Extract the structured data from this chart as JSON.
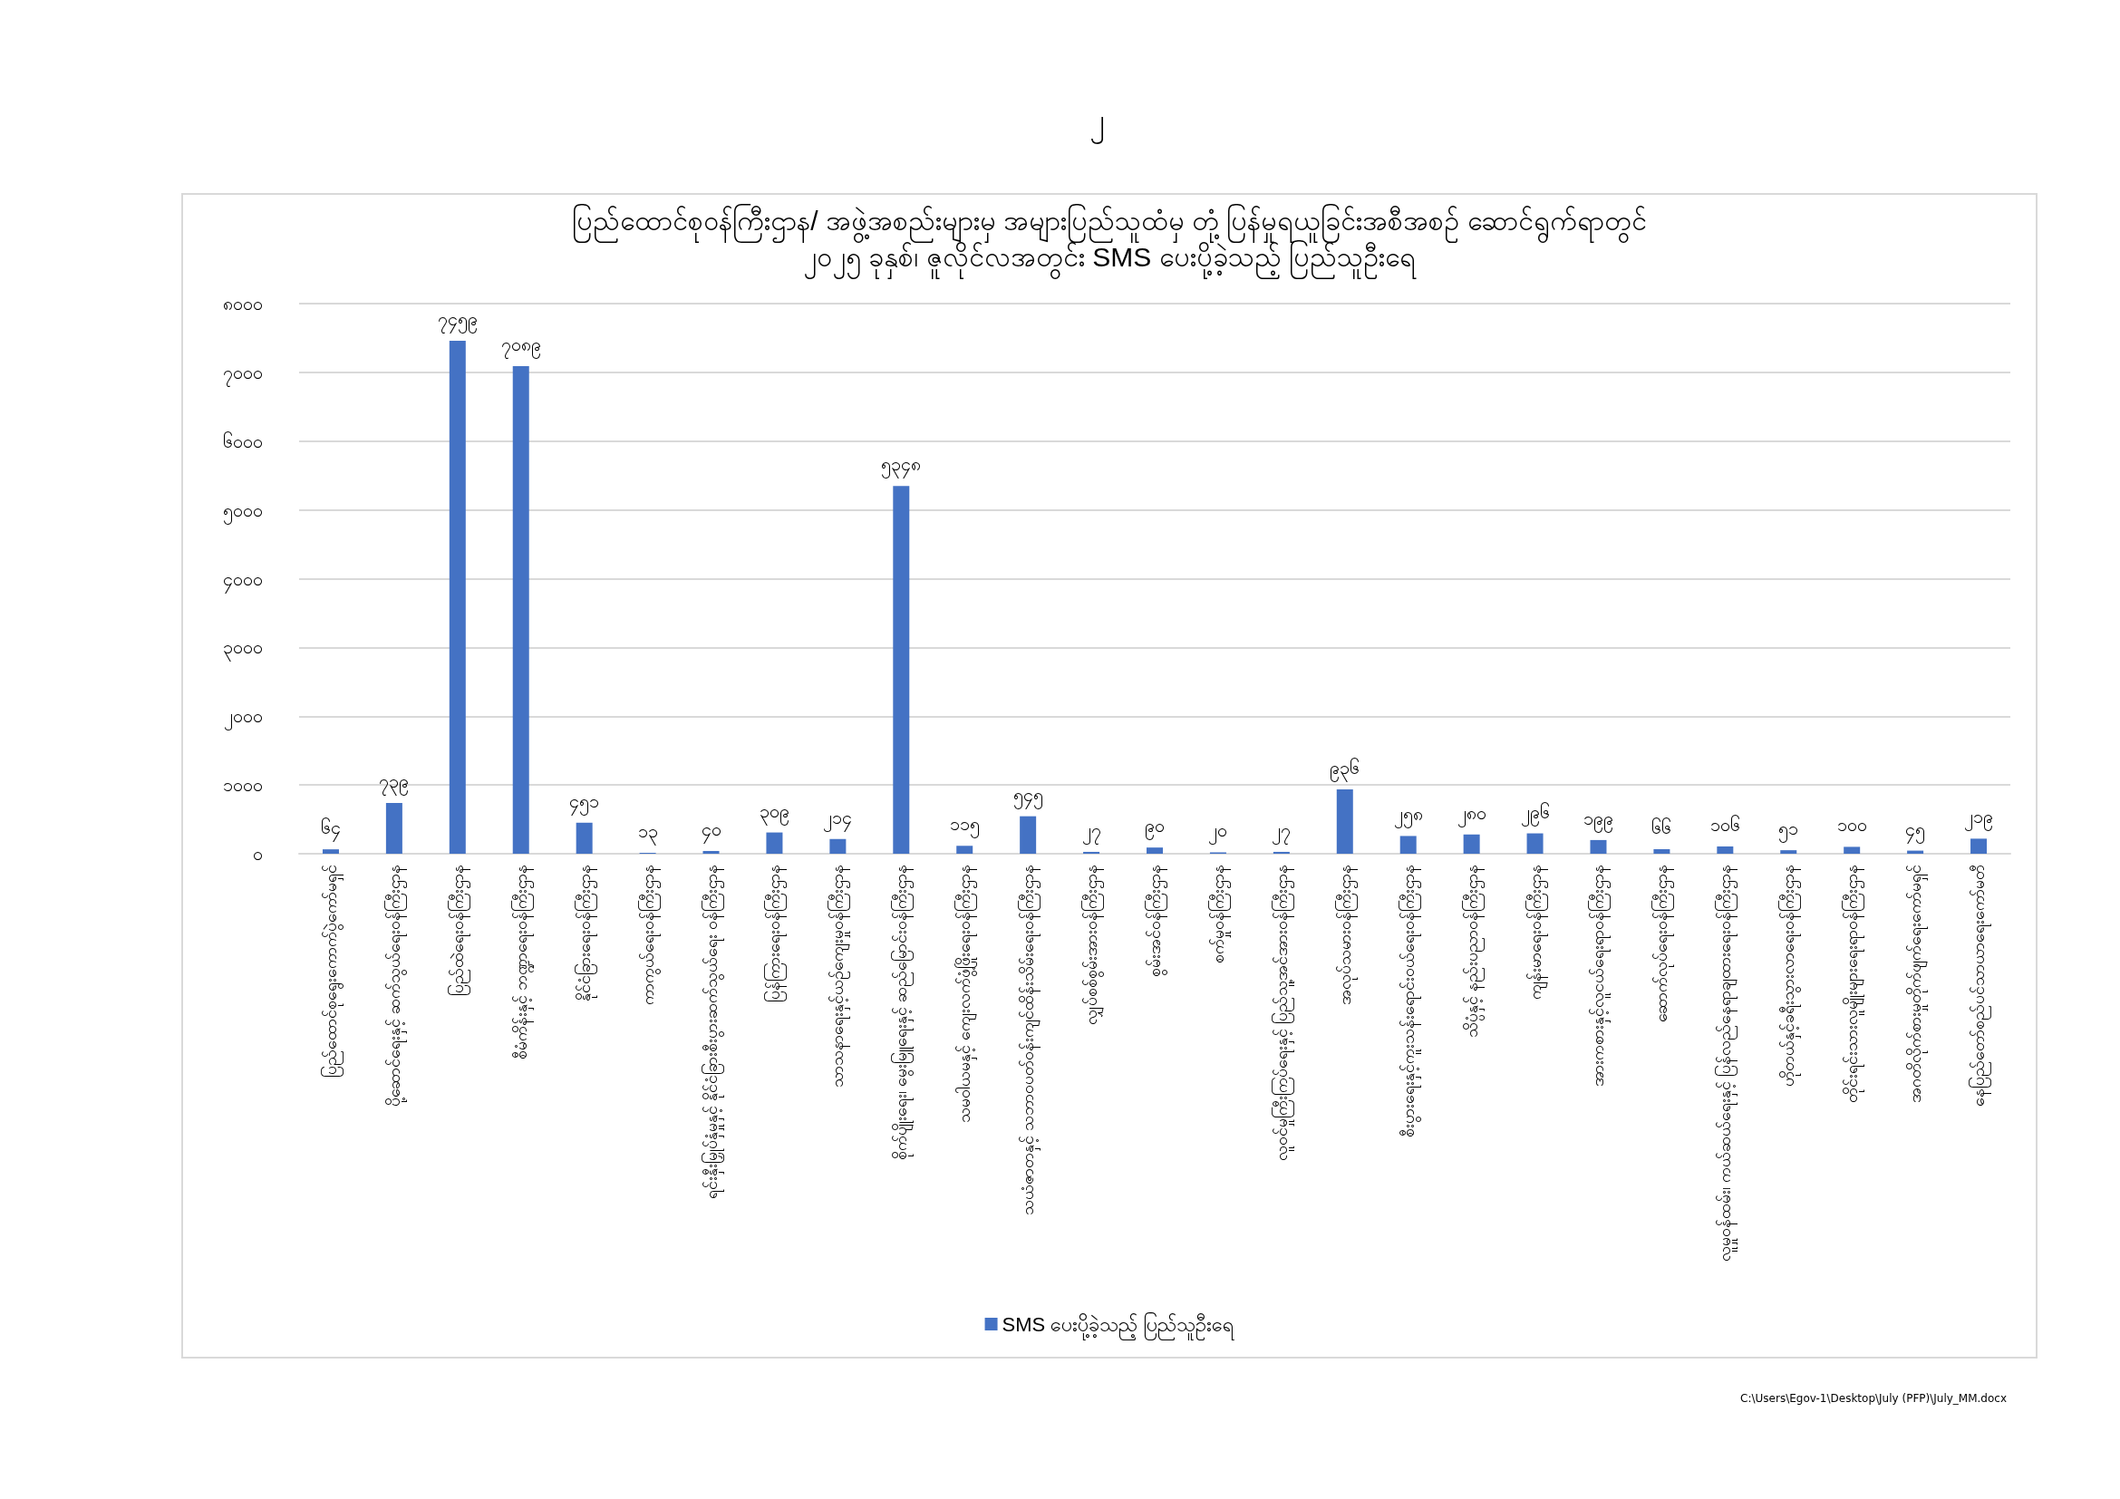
{
  "chart_data": {
    "type": "bar",
    "title": "ပြည်ထောင်စုဝန်ကြီးဌာန/ အဖွဲ့အစည်းများမှ အများပြည်သူထံမှ တုံ့ပြန်မှုရယူခြင်းအစီအစဉ် ဆောင်ရွက်ရာတွင်",
    "subtitle": "၂၀၂၅ ခုနှစ်၊ ဇူလိုင်လအတွင်း SMS ပေးပို့ခဲ့သည့် ပြည်သူဦးရေ",
    "annotations": [
      "၂",
      "C:\\Users\\Egov-1\\Desktop\\July (PFP)\\July_MM.docx"
    ],
    "categories": [
      "ပြည်ထောင်စုရွေးကောက်ပွဲကော်မရှင်",
      "ပို့ဆောင်ရေးနှင့် ဆက်သွယ်ရေးဝန်ကြီးဌာန",
      "ပြည်ထဲရေးဝန်ကြီးဌာန",
      "စီမံကိန်းနှင့် ဘဏ္ဍာရေးဝန်ကြီးဌာန",
      "နိုင်ငံခြားရေးဝန်ကြီးဌာန",
      "ကာကွယ်ရေးဝန်ကြီးဌာန",
      "ရင်းနှီးမြှုပ်နှံမှုနှင့် နိုင်ငံခြားစီးပွားဆက်သွယ်ရေး ဝန်ကြီးဌာန",
      "ပြန်ကြားရေးဝန်ကြီးဌာန",
      "သာသနာရေးနှင့်ယဉ်ကျေးမှုဝန်ကြီးဌာန",
      "စိုက်ပျိုးရေး၊ မွေးမြူရေးနှင့် ဆည်မြောင်းဝန်ကြီးဌာန",
      "သမဝါယမနှင့် ကျေးလက်ဖွံ့ဖြိုးရေးဝန်ကြီးဌာန",
      "သယံဇာတနှင့် သဘာဝပတ်ဝန်းကျင်ထိန်းသိမ်းရေးဝန်ကြီးဌာန",
      "လျှပ်စစ်စွမ်းအားဝန်ကြီးဌာန",
      "စွမ်းအင်ဝန်ကြီးဌာန",
      "စက်မှုဝန်ကြီးဌာန",
      "လူဝင်မှုကြီးကြပ်ရေးနှင့် ပြည်သူ့အင်အားဝန်ကြီးဌာန",
      "အလုပ်သမားဝန်ကြီးဌာန",
      "စီးပွားရေးနှင့်ကူးသန်းရောင်းဝယ်ရေးဝန်ကြီးဌာန",
      "သိပ္ပံနှင့် နည်းပညာဝန်ကြီးဌာန",
      "ကျန်းမာရေးဝန်ကြီးဌာန",
      "အားကစားနှင့်လူငယ်ရေးရာဝန်ကြီးဌာန",
      "ဆောက်လုပ်ရေးဝန်ကြီးဌာန",
      "လူမှုဝန်ထမ်း၊ ကယ်ဆယ်ရေးနှင့် ပြန်လည်နေရာချထားရေးဝန်ကြီးဌာန",
      "ဟိုတယ်နှင့်ခရီးသွားလာရေးဝန်ကြီးဌာန",
      "တိုင်းရင်းသားလူမျိုးများရေးရာဝန်ကြီးဌာန",
      "အဂတိလိုက်စားမှုတိုက်ဖျက်ရေးကော်မရှင်",
      "နေပြည်တော်စည်ပင်သာယာရေးကော်မတီ"
    ],
    "series": [
      {
        "name": "SMS ပေးပို့ခဲ့သည့် ပြည်သူဦးရေ",
        "color": "#4472c4",
        "values": [
          64,
          739,
          7459,
          7089,
          451,
          13,
          40,
          309,
          214,
          5348,
          115,
          545,
          27,
          90,
          20,
          27,
          936,
          258,
          280,
          296,
          199,
          66,
          106,
          51,
          100,
          45,
          219
        ],
        "value_labels": [
          "၆၄",
          "၇၃၉",
          "၇၄၅၉",
          "၇၀၈၉",
          "၄၅၁",
          "၁၃",
          "၄၀",
          "၃၀၉",
          "၂၁၄",
          "၅၃၄၈",
          "၁၁၅",
          "၅၄၅",
          "၂၇",
          "၉၀",
          "၂၀",
          "၂၇",
          "၉၃၆",
          "၂၅၈",
          "၂၈၀",
          "၂၉၆",
          "၁၉၉",
          "၆၆",
          "၁၀၆",
          "၅၁",
          "၁၀၀",
          "၄၅",
          "၂၁၉"
        ]
      }
    ],
    "ylim": [
      0,
      8000
    ],
    "yticks": [
      {
        "value": 0,
        "label": "၀"
      },
      {
        "value": 1000,
        "label": "၁၀၀၀"
      },
      {
        "value": 2000,
        "label": "၂၀၀၀"
      },
      {
        "value": 3000,
        "label": "၃၀၀၀"
      },
      {
        "value": 4000,
        "label": "၄၀၀၀"
      },
      {
        "value": 5000,
        "label": "၅၀၀၀"
      },
      {
        "value": 6000,
        "label": "၆၀၀၀"
      },
      {
        "value": 7000,
        "label": "၇၀၀၀"
      },
      {
        "value": 8000,
        "label": "၈၀၀၀"
      }
    ],
    "grid": "y",
    "legend": "bottom"
  }
}
